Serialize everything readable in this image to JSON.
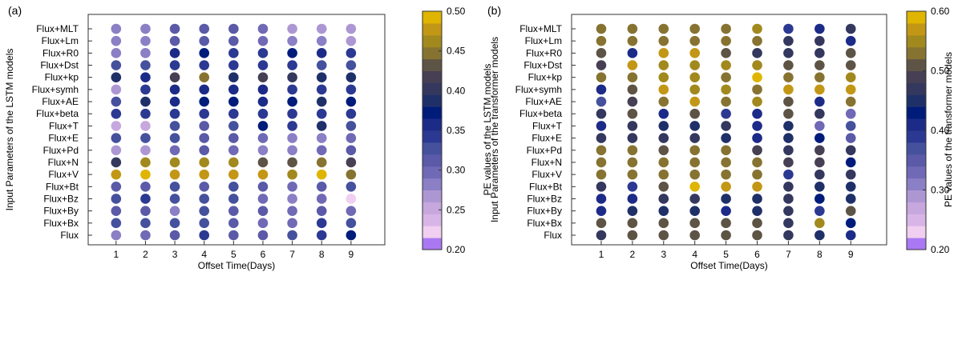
{
  "chart_data": [
    {
      "panel": "(a)",
      "type": "scatter",
      "xlabel": "Offset Time(Days)",
      "ylabel": "Input Parameters of the LSTM models",
      "colorbar_label": "PE values of the LSTM models",
      "colorbar_range": [
        0.2,
        0.5
      ],
      "colorbar_ticks": [
        "0.20",
        "0.25",
        "0.30",
        "0.35",
        "0.40",
        "0.45",
        "0.50"
      ],
      "x": [
        1,
        2,
        3,
        4,
        5,
        6,
        7,
        8,
        9
      ],
      "rows": [
        "Flux+MLT",
        "Flux+Lm",
        "Flux+R0",
        "Flux+Dst",
        "Flux+kp",
        "Flux+symh",
        "Flux+AE",
        "Flux+beta",
        "Flux+T",
        "Flux+E",
        "Flux+Pd",
        "Flux+N",
        "Flux+V",
        "Flux+Bt",
        "Flux+Bz",
        "Flux+By",
        "Flux+Bx",
        "Flux"
      ],
      "values": [
        [
          0.29,
          0.29,
          0.31,
          0.31,
          0.31,
          0.3,
          0.27,
          0.27,
          0.26
        ],
        [
          0.29,
          0.29,
          0.31,
          0.31,
          0.31,
          0.3,
          0.28,
          0.29,
          0.27
        ],
        [
          0.28,
          0.29,
          0.36,
          0.37,
          0.35,
          0.35,
          0.37,
          0.36,
          0.34
        ],
        [
          0.33,
          0.33,
          0.34,
          0.34,
          0.34,
          0.34,
          0.34,
          0.33,
          0.33
        ],
        [
          0.38,
          0.36,
          0.41,
          0.44,
          0.39,
          0.41,
          0.4,
          0.39,
          0.38
        ],
        [
          0.27,
          0.34,
          0.36,
          0.36,
          0.36,
          0.36,
          0.35,
          0.34,
          0.35
        ],
        [
          0.32,
          0.38,
          0.36,
          0.37,
          0.37,
          0.36,
          0.37,
          0.38,
          0.37
        ],
        [
          0.35,
          0.34,
          0.35,
          0.35,
          0.35,
          0.35,
          0.35,
          0.34,
          0.35
        ],
        [
          0.25,
          0.25,
          0.32,
          0.31,
          0.33,
          0.37,
          0.35,
          0.38,
          0.33
        ],
        [
          0.33,
          0.32,
          0.32,
          0.31,
          0.31,
          0.3,
          0.28,
          0.29,
          0.3
        ],
        [
          0.26,
          0.26,
          0.3,
          0.31,
          0.3,
          0.29,
          0.28,
          0.3,
          0.31
        ],
        [
          0.4,
          0.46,
          0.46,
          0.46,
          0.46,
          0.43,
          0.43,
          0.44,
          0.42
        ],
        [
          0.48,
          0.49,
          0.47,
          0.47,
          0.47,
          0.47,
          0.46,
          0.49,
          0.44
        ],
        [
          0.31,
          0.31,
          0.32,
          0.31,
          0.32,
          0.31,
          0.3,
          0.31,
          0.32
        ],
        [
          0.33,
          0.34,
          0.33,
          0.32,
          0.32,
          0.3,
          0.29,
          0.3,
          0.22
        ],
        [
          0.31,
          0.31,
          0.28,
          0.32,
          0.31,
          0.31,
          0.3,
          0.31,
          0.3
        ],
        [
          0.32,
          0.33,
          0.32,
          0.33,
          0.31,
          0.3,
          0.3,
          0.34,
          0.32
        ],
        [
          0.29,
          0.3,
          0.31,
          0.34,
          0.31,
          0.31,
          0.32,
          0.34,
          0.37
        ]
      ]
    },
    {
      "panel": "(b)",
      "type": "scatter",
      "xlabel": "Offset Time(Days)",
      "ylabel": "Input Parameters of the transformer models",
      "colorbar_label": "PE values of the transformer models",
      "colorbar_range": [
        0.2,
        0.6
      ],
      "colorbar_ticks": [
        "0.20",
        "0.30",
        "0.40",
        "0.50",
        "0.60"
      ],
      "x": [
        1,
        2,
        3,
        4,
        5,
        6,
        7,
        8,
        9
      ],
      "rows": [
        "Flux+MLT",
        "Flux+Lm",
        "Flux+R0",
        "Flux+Dst",
        "Flux+kp",
        "Flux+symh",
        "Flux+AE",
        "Flux+beta",
        "Flux+T",
        "Flux+E",
        "Flux+Pd",
        "Flux+N",
        "Flux+V",
        "Flux+Bt",
        "Flux+Bz",
        "Flux+By",
        "Flux+Bx",
        "Flux"
      ],
      "values": [
        [
          0.53,
          0.53,
          0.53,
          0.53,
          0.53,
          0.54,
          0.38,
          0.42,
          0.46
        ],
        [
          0.53,
          0.53,
          0.53,
          0.53,
          0.53,
          0.53,
          0.46,
          0.47,
          0.42
        ],
        [
          0.5,
          0.42,
          0.57,
          0.57,
          0.51,
          0.46,
          0.46,
          0.47,
          0.5
        ],
        [
          0.48,
          0.57,
          0.54,
          0.54,
          0.54,
          0.55,
          0.51,
          0.51,
          0.51
        ],
        [
          0.52,
          0.53,
          0.55,
          0.54,
          0.53,
          0.58,
          0.53,
          0.53,
          0.55
        ],
        [
          0.42,
          0.51,
          0.56,
          0.55,
          0.55,
          0.53,
          0.57,
          0.56,
          0.57
        ],
        [
          0.37,
          0.49,
          0.52,
          0.57,
          0.53,
          0.55,
          0.51,
          0.42,
          0.53
        ],
        [
          0.47,
          0.51,
          0.4,
          0.51,
          0.38,
          0.4,
          0.51,
          0.46,
          0.33
        ],
        [
          0.42,
          0.47,
          0.44,
          0.44,
          0.47,
          0.42,
          0.45,
          0.33,
          0.37
        ],
        [
          0.46,
          0.47,
          0.46,
          0.46,
          0.44,
          0.42,
          0.44,
          0.43,
          0.34
        ],
        [
          0.53,
          0.53,
          0.51,
          0.53,
          0.52,
          0.49,
          0.47,
          0.48,
          0.46
        ],
        [
          0.53,
          0.52,
          0.52,
          0.52,
          0.52,
          0.53,
          0.48,
          0.48,
          0.43
        ],
        [
          0.53,
          0.53,
          0.52,
          0.52,
          0.52,
          0.52,
          0.38,
          0.47,
          0.46
        ],
        [
          0.47,
          0.38,
          0.51,
          0.58,
          0.57,
          0.56,
          0.46,
          0.44,
          0.44
        ],
        [
          0.42,
          0.42,
          0.46,
          0.46,
          0.44,
          0.44,
          0.46,
          0.43,
          0.44
        ],
        [
          0.42,
          0.44,
          0.44,
          0.44,
          0.42,
          0.44,
          0.46,
          0.39,
          0.51
        ],
        [
          0.51,
          0.51,
          0.51,
          0.5,
          0.51,
          0.51,
          0.46,
          0.54,
          0.43
        ],
        [
          0.46,
          0.5,
          0.5,
          0.51,
          0.5,
          0.51,
          0.46,
          0.45,
          0.42
        ]
      ]
    }
  ],
  "colormap": [
    "#ab78f3",
    "#f0cff0",
    "#d8b5e7",
    "#c6a7de",
    "#ad97d3",
    "#8b7fc5",
    "#7069b5",
    "#5a5aa8",
    "#45519d",
    "#2c3992",
    "#1d2b88",
    "#001c7a",
    "#1f3069",
    "#34385e",
    "#473f53",
    "#5e5446",
    "#877331",
    "#a2891e",
    "#c39716",
    "#dfb501"
  ]
}
